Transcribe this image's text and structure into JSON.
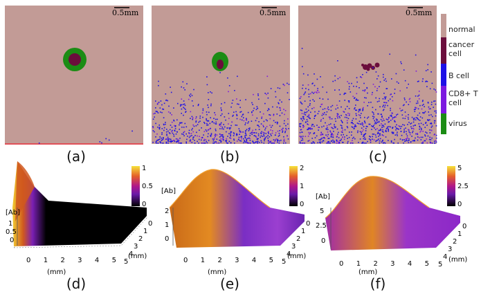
{
  "figure": {
    "scale_bar": "0.5mm",
    "panel_labels": [
      "(a)",
      "(b)",
      "(c)",
      "(d)",
      "(e)",
      "(f)"
    ],
    "colors": {
      "normal": "#c29b96",
      "cancer": "#6b0d3c",
      "bcell": "#1d10e6",
      "cd8": "#7c19e0",
      "virus": "#1b8c14",
      "baseline": "#e05058"
    }
  },
  "legend": {
    "items": [
      {
        "label": "normal",
        "color": "#c29b96"
      },
      {
        "label": "cancer\ncell",
        "color": "#6b0d3c"
      },
      {
        "label": "B cell",
        "color": "#1d10e6"
      },
      {
        "label": "CD8+ T\ncell",
        "color": "#7c19e0"
      },
      {
        "label": "virus",
        "color": "#1b8c14"
      }
    ]
  },
  "chart_data": [
    {
      "type": "surface",
      "panel": "(d)",
      "zlabel": "[Ab]",
      "xlabel": "(mm)",
      "ylabel": "(mm)",
      "x_ticks": [
        "0",
        "1",
        "2",
        "3",
        "4",
        "5"
      ],
      "y_ticks": [
        "0",
        "1",
        "2",
        "3",
        "4",
        "5"
      ],
      "z_ticks": [
        "0",
        "0.5",
        "1"
      ],
      "colorbar_ticks": [
        "1",
        "0.5",
        "0"
      ],
      "zlim": [
        0,
        1
      ],
      "description_peak_x_mm": 0,
      "peak_value": 1
    },
    {
      "type": "surface",
      "panel": "(e)",
      "zlabel": "[Ab]",
      "xlabel": "(mm)",
      "ylabel": "(mm)",
      "x_ticks": [
        "0",
        "1",
        "2",
        "3",
        "4",
        "5"
      ],
      "y_ticks": [
        "0",
        "1",
        "2",
        "3",
        "4",
        "5"
      ],
      "z_ticks": [
        "0",
        "1",
        "2"
      ],
      "colorbar_ticks": [
        "2",
        "1",
        "0"
      ],
      "zlim": [
        0,
        2
      ],
      "peak_value": 2
    },
    {
      "type": "surface",
      "panel": "(f)",
      "zlabel": "[Ab]",
      "xlabel": "(mm)",
      "ylabel": "(mm)",
      "x_ticks": [
        "0",
        "1",
        "2",
        "3",
        "4",
        "5"
      ],
      "y_ticks": [
        "0",
        "1",
        "2",
        "3",
        "4",
        "5"
      ],
      "z_ticks": [
        "0",
        "2.5",
        "5"
      ],
      "colorbar_ticks": [
        "5",
        "2.5",
        "0"
      ],
      "zlim": [
        0,
        5
      ],
      "peak_value": 5
    }
  ]
}
